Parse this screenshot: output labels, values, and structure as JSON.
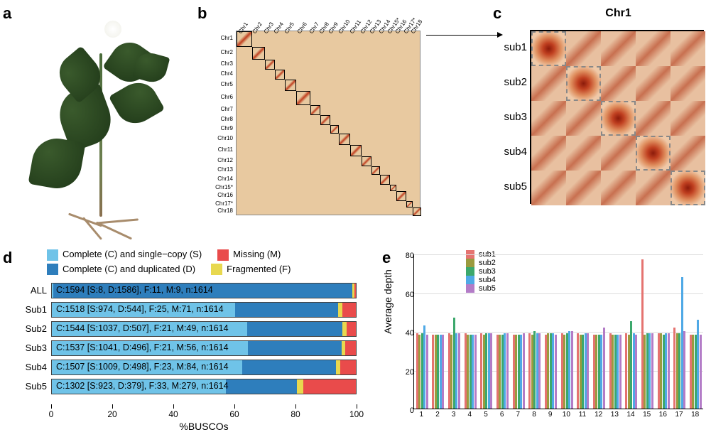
{
  "labels": {
    "a": "a",
    "b": "b",
    "c": "c",
    "d": "d",
    "e": "e"
  },
  "panel_b": {
    "chr_labels": [
      "Chr1",
      "Chr2",
      "Chr3",
      "Chr4",
      "Chr5",
      "Chr6",
      "Chr7",
      "Chr8",
      "Chr9",
      "Chr10",
      "Chr11",
      "Chr12",
      "Chr13",
      "Chr14",
      "Chr15*",
      "Chr16",
      "Chr17*",
      "Chr18"
    ],
    "sizes": [
      22,
      18,
      14,
      14,
      16,
      20,
      14,
      14,
      12,
      16,
      16,
      14,
      12,
      14,
      9,
      14,
      9,
      12
    ],
    "background": "#e8c9a0",
    "diag_color": "#c04020",
    "border_color": "#000000"
  },
  "panel_c": {
    "title": "Chr1",
    "sub_labels": [
      "sub1",
      "sub2",
      "sub3",
      "sub4",
      "sub5"
    ],
    "n_sub": 5,
    "colors": {
      "hot": "#8b1a0a",
      "mid": "#c04020",
      "cool": "#e8c0a0",
      "dash": "#888888",
      "border": "#000000"
    }
  },
  "panel_d": {
    "legend": [
      {
        "label": "Complete (C) and single−copy (S)",
        "color": "#6fc3e8"
      },
      {
        "label": "Complete (C) and duplicated (D)",
        "color": "#2e7ebc"
      },
      {
        "label": "Missing (M)",
        "color": "#e94b4b"
      },
      {
        "label": "Fragmented (F)",
        "color": "#e8d84f"
      }
    ],
    "rows": [
      {
        "name": "ALL",
        "text": "C:1594 [S:8, D:1586], F:11, M:9, n:1614",
        "S": 8,
        "D": 1586,
        "F": 11,
        "M": 9,
        "n": 1614
      },
      {
        "name": "Sub1",
        "text": "C:1518 [S:974, D:544], F:25, M:71, n:1614",
        "S": 974,
        "D": 544,
        "F": 25,
        "M": 71,
        "n": 1614
      },
      {
        "name": "Sub2",
        "text": "C:1544 [S:1037, D:507], F:21, M:49, n:1614",
        "S": 1037,
        "D": 507,
        "F": 21,
        "M": 49,
        "n": 1614
      },
      {
        "name": "Sub3",
        "text": "C:1537 [S:1041, D:496], F:21, M:56, n:1614",
        "S": 1041,
        "D": 496,
        "F": 21,
        "M": 56,
        "n": 1614
      },
      {
        "name": "Sub4",
        "text": "C:1507 [S:1009, D:498], F:23, M:84, n:1614",
        "S": 1009,
        "D": 498,
        "F": 23,
        "M": 84,
        "n": 1614
      },
      {
        "name": "Sub5",
        "text": "C:1302 [S:923, D:379], F:33, M:279, n:1614",
        "S": 923,
        "D": 379,
        "F": 33,
        "M": 279,
        "n": 1614
      }
    ],
    "xticks": [
      0,
      20,
      40,
      60,
      80,
      100
    ],
    "xlabel": "%BUSCOs",
    "colors": {
      "S": "#6fc3e8",
      "D": "#2e7ebc",
      "F": "#e8d84f",
      "M": "#e94b4b"
    }
  },
  "panel_e": {
    "ylabel": "Average depth",
    "yticks": [
      0,
      20,
      40,
      60,
      80
    ],
    "ymax": 80,
    "xlabels": [
      "1",
      "2",
      "3",
      "4",
      "5",
      "6",
      "7",
      "8",
      "9",
      "10",
      "11",
      "12",
      "13",
      "14",
      "15",
      "16",
      "17",
      "18"
    ],
    "subs": [
      {
        "name": "sub1",
        "color": "#e57370"
      },
      {
        "name": "sub2",
        "color": "#9a9a3e"
      },
      {
        "name": "sub3",
        "color": "#3ca86c"
      },
      {
        "name": "sub4",
        "color": "#4fa9e6"
      },
      {
        "name": "sub5",
        "color": "#b37cc7"
      }
    ],
    "data": {
      "sub1": [
        39,
        38,
        39,
        39,
        39,
        38,
        38,
        39,
        38,
        39,
        39,
        38,
        39,
        39,
        77,
        39,
        42,
        38
      ],
      "sub2": [
        38,
        38,
        38,
        38,
        38,
        38,
        38,
        38,
        39,
        38,
        38,
        38,
        38,
        38,
        38,
        39,
        39,
        38
      ],
      "sub3": [
        39,
        38,
        47,
        38,
        39,
        38,
        38,
        40,
        39,
        39,
        38,
        38,
        38,
        45,
        39,
        38,
        39,
        38
      ],
      "sub4": [
        43,
        38,
        39,
        38,
        39,
        39,
        38,
        39,
        39,
        40,
        39,
        38,
        38,
        39,
        39,
        39,
        68,
        46
      ],
      "sub5": [
        38,
        38,
        39,
        38,
        39,
        39,
        39,
        39,
        38,
        40,
        39,
        42,
        38,
        38,
        39,
        39,
        40,
        38
      ]
    },
    "grid_color": "#dddddd",
    "axis_color": "#000000"
  }
}
